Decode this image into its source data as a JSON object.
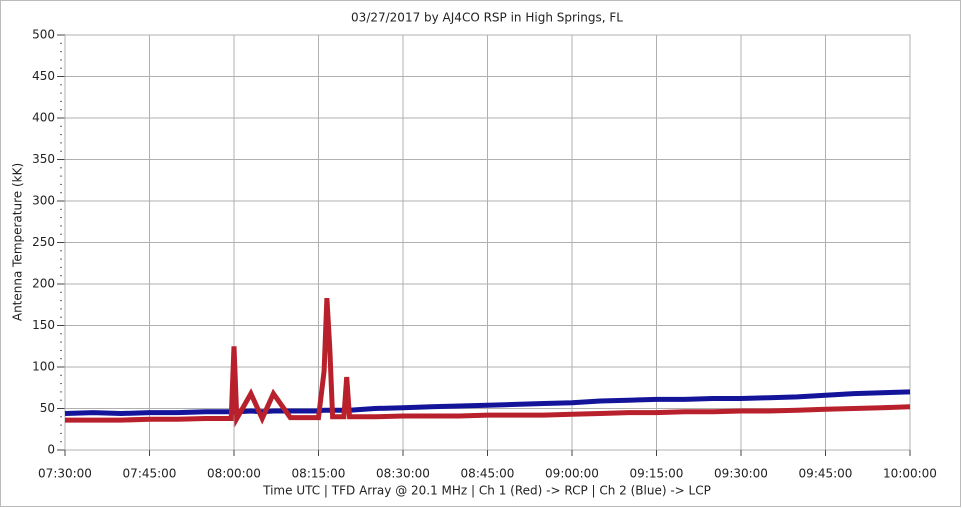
{
  "chart_data": {
    "type": "line",
    "title": "03/27/2017  by  AJ4CO RSP  in  High Springs, FL",
    "x_label": "Time UTC    |    TFD Array @ 20.1 MHz    |    Ch 1 (Red) -> RCP    |    Ch 2 (Blue)  -> LCP",
    "y_label": "Antenna Temperature (kK)",
    "x": [
      "07:30:00",
      "07:35:00",
      "07:40:00",
      "07:45:00",
      "07:50:00",
      "07:55:00",
      "07:59:30",
      "08:00:00",
      "08:00:30",
      "08:03:00",
      "08:05:00",
      "08:07:00",
      "08:10:00",
      "08:15:00",
      "08:16:00",
      "08:16:30",
      "08:17:00",
      "08:17:30",
      "08:19:30",
      "08:20:00",
      "08:20:30",
      "08:25:00",
      "08:30:00",
      "08:35:00",
      "08:40:00",
      "08:45:00",
      "08:50:00",
      "08:55:00",
      "09:00:00",
      "09:05:00",
      "09:10:00",
      "09:15:00",
      "09:20:00",
      "09:25:00",
      "09:30:00",
      "09:35:00",
      "09:40:00",
      "09:45:00",
      "09:50:00",
      "09:55:00",
      "10:00:00"
    ],
    "series": [
      {
        "name": "Ch 2 (Blue)",
        "color": "#14149a",
        "values": [
          44,
          45,
          44,
          45,
          45,
          46,
          46,
          46,
          46,
          47,
          46,
          47,
          47,
          47,
          48,
          48,
          48,
          48,
          48,
          48,
          48,
          50,
          51,
          52,
          53,
          54,
          55,
          56,
          57,
          59,
          60,
          61,
          61,
          62,
          62,
          63,
          64,
          66,
          68,
          69,
          70
        ]
      },
      {
        "name": "Ch 1 (Red)",
        "color": "#b8202c",
        "values": [
          36,
          36,
          36,
          37,
          37,
          38,
          38,
          125,
          38,
          68,
          38,
          68,
          39,
          39,
          95,
          183,
          122,
          40,
          40,
          88,
          40,
          40,
          41,
          41,
          41,
          42,
          42,
          42,
          43,
          44,
          45,
          45,
          46,
          46,
          47,
          47,
          48,
          49,
          50,
          51,
          52
        ]
      }
    ],
    "xlim": [
      "07:30:00",
      "10:00:00"
    ],
    "xticks": [
      "07:30:00",
      "07:45:00",
      "08:00:00",
      "08:15:00",
      "08:30:00",
      "08:45:00",
      "09:00:00",
      "09:15:00",
      "09:30:00",
      "09:45:00",
      "10:00:00"
    ],
    "ylim": [
      0,
      500
    ],
    "yticks": [
      0,
      50,
      100,
      150,
      200,
      250,
      300,
      350,
      400,
      450,
      500
    ],
    "grid": true
  }
}
